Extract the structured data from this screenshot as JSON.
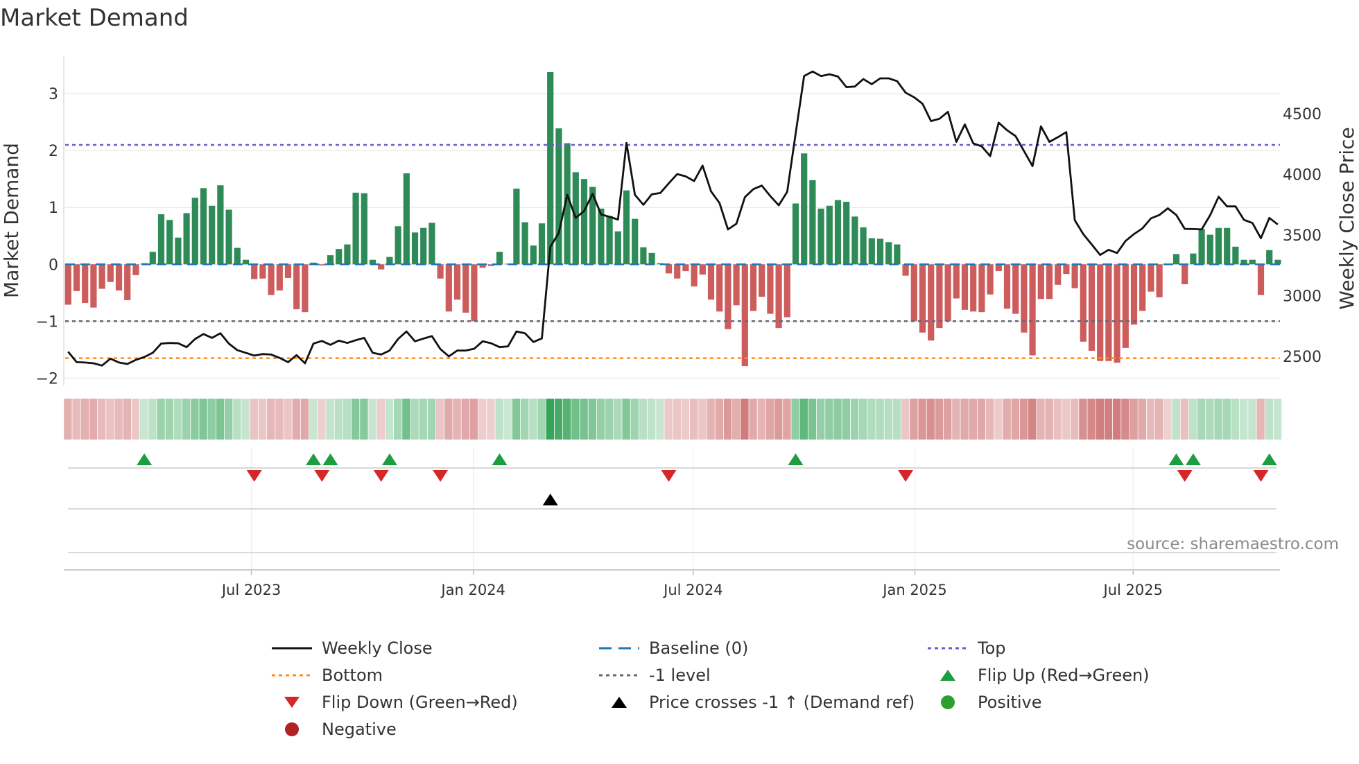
{
  "title": "Market Demand",
  "source": "source: sharemaestro.com",
  "chart_data": {
    "type": "bar",
    "title": "Market Demand",
    "ylabel": "Market Demand",
    "y2label": "Weekly Close Price",
    "ylim": [
      -2.13,
      3.66
    ],
    "y2lim": [
      2260,
      4974
    ],
    "yticks": [
      3,
      2,
      1,
      0,
      -1,
      -2
    ],
    "ytick_labels": [
      "3",
      "2",
      "1",
      "0",
      "−1",
      "−2"
    ],
    "y2ticks": [
      4500,
      4000,
      3500,
      3000,
      2500
    ],
    "y2tick_labels": [
      "4500",
      "4000",
      "3500",
      "3000",
      "2500"
    ],
    "xticks": [
      {
        "label": "Jul 2023",
        "week": 21.66
      },
      {
        "label": "Jan 2024",
        "week": 47.9
      },
      {
        "label": "Jul 2024",
        "week": 73.9
      },
      {
        "label": "Jan 2025",
        "week": 100.1
      },
      {
        "label": "Jul 2025",
        "week": 125.9
      }
    ],
    "grid": true,
    "demand": [
      -0.71,
      -0.47,
      -0.68,
      -0.76,
      -0.43,
      -0.31,
      -0.46,
      -0.63,
      -0.19,
      0.02,
      0.22,
      0.88,
      0.78,
      0.47,
      0.9,
      1.17,
      1.34,
      1.03,
      1.39,
      0.96,
      0.29,
      0.08,
      -0.26,
      -0.25,
      -0.54,
      -0.46,
      -0.24,
      -0.79,
      -0.84,
      0.03,
      -0.02,
      0.16,
      0.27,
      0.35,
      1.26,
      1.25,
      0.08,
      -0.09,
      0.13,
      0.67,
      1.6,
      0.56,
      0.64,
      0.73,
      -0.25,
      -0.83,
      -0.62,
      -0.85,
      -1.0,
      -0.06,
      -0.03,
      0.22,
      0.01,
      1.33,
      0.74,
      0.33,
      0.72,
      3.38,
      2.39,
      2.13,
      1.62,
      1.5,
      1.36,
      0.98,
      0.85,
      0.58,
      1.3,
      0.8,
      0.3,
      0.2,
      0.02,
      -0.16,
      -0.25,
      -0.12,
      -0.39,
      -0.18,
      -0.62,
      -0.83,
      -1.14,
      -0.72,
      -1.79,
      -0.82,
      -0.57,
      -0.87,
      -1.12,
      -0.93,
      1.07,
      1.95,
      1.48,
      0.98,
      1.03,
      1.13,
      1.1,
      0.84,
      0.65,
      0.46,
      0.45,
      0.39,
      0.35,
      -0.2,
      -1.0,
      -1.2,
      -1.34,
      -1.12,
      -1.0,
      -0.6,
      -0.8,
      -0.83,
      -0.84,
      -0.53,
      -0.12,
      -0.78,
      -0.87,
      -1.2,
      -1.6,
      -0.61,
      -0.61,
      -0.36,
      -0.17,
      -0.42,
      -1.36,
      -1.52,
      -1.7,
      -1.7,
      -1.73,
      -1.47,
      -1.06,
      -0.82,
      -0.48,
      -0.58,
      -0.01,
      0.18,
      -0.35,
      0.19,
      0.62,
      0.52,
      0.64,
      0.64,
      0.31,
      0.08,
      0.08,
      -0.54,
      0.25,
      0.08
    ],
    "weekly_close": [
      2538,
      2452,
      2449,
      2443,
      2424,
      2481,
      2449,
      2437,
      2471,
      2494,
      2529,
      2605,
      2610,
      2608,
      2576,
      2643,
      2684,
      2652,
      2690,
      2605,
      2551,
      2529,
      2506,
      2519,
      2515,
      2487,
      2452,
      2510,
      2443,
      2605,
      2627,
      2595,
      2629,
      2610,
      2633,
      2652,
      2529,
      2515,
      2548,
      2643,
      2705,
      2624,
      2646,
      2667,
      2560,
      2500,
      2548,
      2548,
      2563,
      2624,
      2608,
      2576,
      2582,
      2705,
      2690,
      2618,
      2648,
      3403,
      3517,
      3831,
      3641,
      3698,
      3840,
      3669,
      3650,
      3627,
      4259,
      3831,
      3749,
      3835,
      3846,
      3926,
      4002,
      3983,
      3945,
      4072,
      3859,
      3764,
      3546,
      3593,
      3812,
      3878,
      3907,
      3821,
      3745,
      3855,
      4335,
      4810,
      4848,
      4810,
      4825,
      4806,
      4719,
      4724,
      4785,
      4743,
      4791,
      4791,
      4768,
      4673,
      4635,
      4582,
      4439,
      4458,
      4515,
      4268,
      4411,
      4255,
      4230,
      4150,
      4426,
      4363,
      4315,
      4192,
      4068,
      4395,
      4268,
      4306,
      4348,
      3622,
      3508,
      3422,
      3336,
      3378,
      3352,
      3451,
      3508,
      3555,
      3637,
      3665,
      3720,
      3665,
      3551,
      3549,
      3546,
      3663,
      3815,
      3736,
      3736,
      3625,
      3599,
      3473,
      3641,
      3587
    ],
    "reference_lines": {
      "top": 2.1,
      "bottom": -1.65,
      "minus_one": -1,
      "baseline": 0
    },
    "flip_up_weeks": [
      9,
      29,
      31,
      38,
      51,
      86,
      131,
      133,
      142
    ],
    "flip_down_weeks": [
      22,
      30,
      37,
      44,
      71,
      99,
      132,
      141
    ],
    "price_cross_weeks": [
      57
    ],
    "colors": {
      "positive": "#2e8b57",
      "negative": "#cd5c5c",
      "close": "#111111",
      "baseline": "#1f77b4",
      "top": "#6a5acd",
      "bottom": "#ff8c1a",
      "minus_one": "#666677",
      "flip_up": "#1a9e3f",
      "flip_down": "#d62728",
      "cross": "#000000",
      "pos_dot": "#2ca02c",
      "neg_dot": "#b22222"
    },
    "legend": [
      {
        "key": "close",
        "label": "Weekly Close"
      },
      {
        "key": "baseline",
        "label": "Baseline (0)"
      },
      {
        "key": "top",
        "label": "Top"
      },
      {
        "key": "bottom",
        "label": "Bottom"
      },
      {
        "key": "minus_one",
        "label": "-1 level"
      },
      {
        "key": "flip_up",
        "label": "Flip Up (Red→Green)"
      },
      {
        "key": "flip_down",
        "label": "Flip Down (Green→Red)"
      },
      {
        "key": "cross",
        "label": "Price crosses -1 ↑ (Demand ref)"
      },
      {
        "key": "pos_dot",
        "label": "Positive"
      },
      {
        "key": "neg_dot",
        "label": "Negative"
      }
    ]
  }
}
